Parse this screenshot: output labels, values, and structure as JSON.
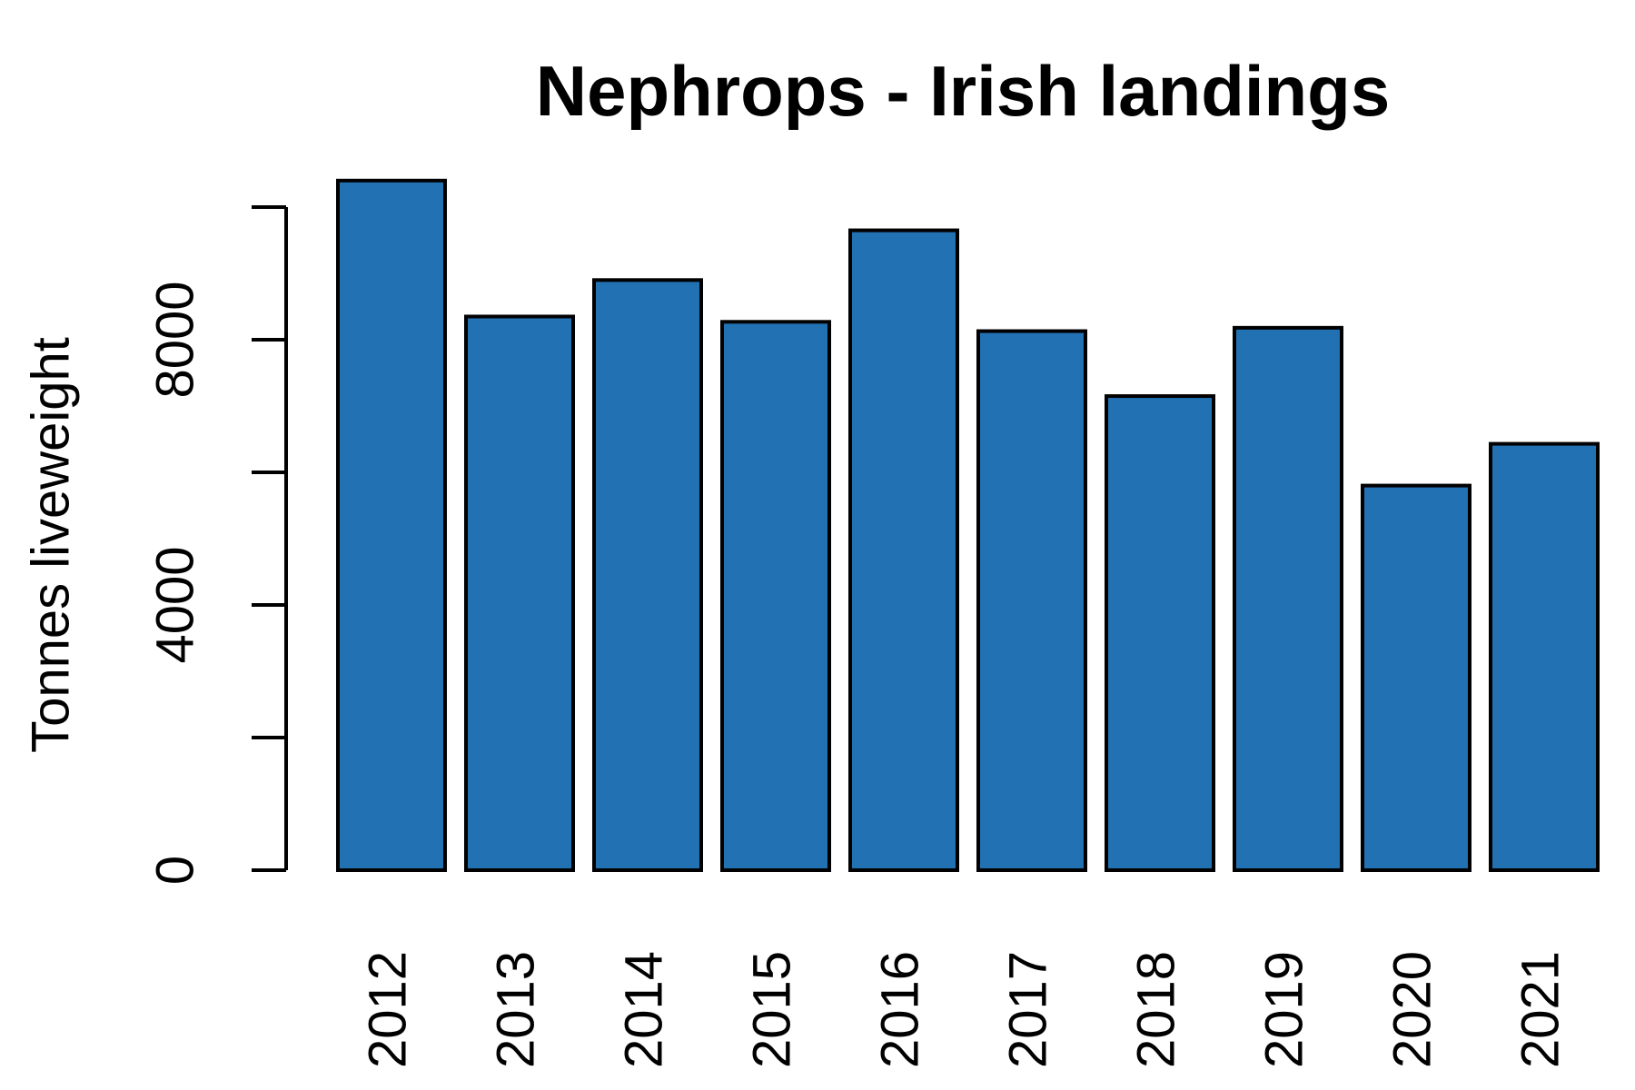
{
  "chart_data": {
    "type": "bar",
    "title": "Nephrops - Irish landings",
    "xlabel": "",
    "ylabel": "Tonnes liveweight",
    "categories": [
      "2012",
      "2013",
      "2014",
      "2015",
      "2016",
      "2017",
      "2018",
      "2019",
      "2020",
      "2021"
    ],
    "values": [
      10400,
      8350,
      8900,
      8270,
      9650,
      8130,
      7150,
      8180,
      5800,
      6430
    ],
    "ylim": [
      0,
      10000
    ],
    "yticks": [
      0,
      2000,
      4000,
      6000,
      8000,
      10000
    ],
    "ytick_labels": [
      "0",
      "",
      "4000",
      "",
      "8000",
      ""
    ],
    "bar_color": "#2271b3",
    "grid": false,
    "legend": "none"
  }
}
